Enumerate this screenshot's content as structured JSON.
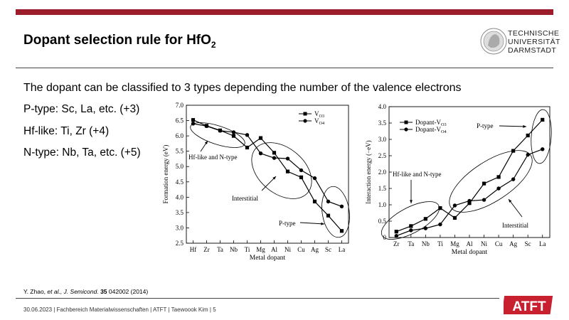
{
  "slide": {
    "title_main": "Dopant selection rule for HfO",
    "title_sub": "2",
    "intro": "The dopant can be classified to 3 types depending the number of the valence electrons",
    "bullets": [
      "P-type: Sc, La, etc. (+3)",
      "Hf-like: Ti, Zr (+4)",
      "N-type: Nb, Ta, etc. (+5)"
    ],
    "citation": {
      "authors": "Y. Zhao, ",
      "etal": "et al., J. Semicond.",
      "volume": "35",
      "rest": " 042002 (2014)"
    },
    "footer": "30.06.2023  |  Fachbereich Materialwissenschaften  |  ATFT  |  Taewoook Kim  |  5",
    "logo_lines": [
      "TECHNISCHE",
      "UNIVERSITÄT",
      "DARMSTADT"
    ],
    "logo2_text": "ATFT",
    "accent_color": "#9b1c2a"
  },
  "chart_data": [
    {
      "type": "line",
      "xlabel": "Metal dopant",
      "ylabel": "Formation energy (eV)",
      "ylim": [
        2.5,
        7.0
      ],
      "yticks": [
        "2.5",
        "3.0",
        "3.5",
        "4.0",
        "4.5",
        "5.0",
        "5.5",
        "6.0",
        "6.5",
        "7.0"
      ],
      "categories": [
        "Hf",
        "Zr",
        "Ta",
        "Nb",
        "Ti",
        "Mg",
        "Al",
        "Ni",
        "Cu",
        "Ag",
        "Sc",
        "La"
      ],
      "series": [
        {
          "name": "V",
          "sub": "O3",
          "marker": "square",
          "values": [
            6.52,
            6.33,
            6.18,
            6.0,
            5.62,
            5.93,
            5.45,
            4.84,
            4.65,
            3.86,
            3.4,
            2.9
          ]
        },
        {
          "name": "V",
          "sub": "O4",
          "marker": "circle",
          "values": [
            6.4,
            6.32,
            6.17,
            6.12,
            6.03,
            5.43,
            5.28,
            5.26,
            4.88,
            4.62,
            3.86,
            3.7
          ]
        }
      ],
      "annotations": [
        "Hf-like and N-type",
        "Interstitial",
        "P-type"
      ],
      "legend": "top-right"
    },
    {
      "type": "line",
      "xlabel": "Metal dopant",
      "ylabel": "Interaction energy (−eV)",
      "ylim": [
        0,
        4.0
      ],
      "yticks": [
        "0",
        "0.5",
        "1.0",
        "1.5",
        "2.0",
        "2.5",
        "3.0",
        "3.5",
        "4.0"
      ],
      "categories": [
        "Zr",
        "Ta",
        "Nb",
        "Ti",
        "Mg",
        "Al",
        "Ni",
        "Cu",
        "Ag",
        "Sc",
        "La"
      ],
      "series": [
        {
          "name": "Dopant-V",
          "sub": "O3",
          "marker": "square",
          "values": [
            0.18,
            0.35,
            0.57,
            0.9,
            0.6,
            1.05,
            1.65,
            1.85,
            2.65,
            3.12,
            3.6
          ]
        },
        {
          "name": "Dopant-V",
          "sub": "O4",
          "marker": "circle",
          "values": [
            0.05,
            0.22,
            0.28,
            0.4,
            0.98,
            1.12,
            1.15,
            1.5,
            1.78,
            2.53,
            2.7
          ]
        }
      ],
      "annotations": [
        "Hf-like and N-type",
        "P-type",
        "Interstitial"
      ],
      "legend": "top-left"
    }
  ]
}
